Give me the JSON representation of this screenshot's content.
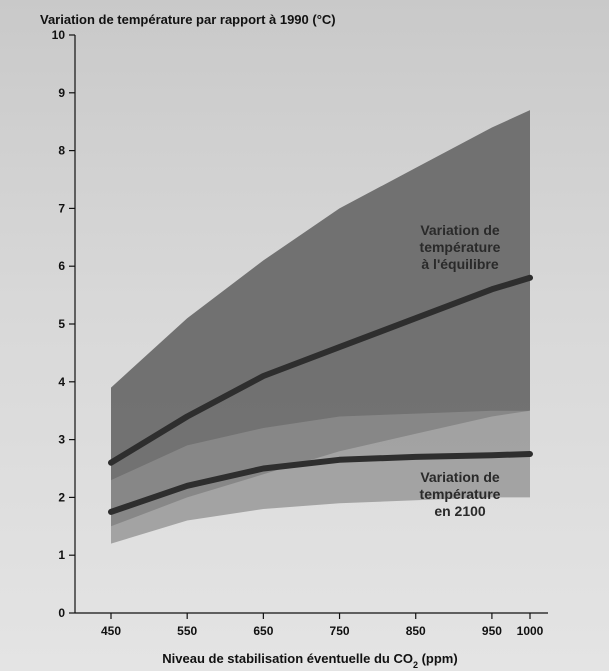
{
  "chart_data": {
    "type": "area",
    "title": "",
    "ylabel": "Variation de température par rapport à 1990 (°C)",
    "xlabel_main": "Niveau de stabilisation éventuelle du CO",
    "xlabel_sub": "2",
    "xlabel_tail": " (ppm)",
    "xlim": [
      450,
      1000
    ],
    "ylim": [
      0,
      10
    ],
    "xticks": [
      450,
      550,
      650,
      750,
      850,
      950,
      1000
    ],
    "yticks": [
      0,
      1,
      2,
      3,
      4,
      5,
      6,
      7,
      8,
      9,
      10
    ],
    "grid": false,
    "series": [
      {
        "x": [
          450,
          550,
          650,
          750,
          850,
          950,
          1000
        ],
        "lower": [
          1.5,
          2.0,
          2.4,
          2.8,
          3.1,
          3.4,
          3.5
        ],
        "upper": [
          3.9,
          5.1,
          6.1,
          7.0,
          7.7,
          8.4,
          8.7
        ],
        "values": [
          2.6,
          3.4,
          4.1,
          4.6,
          5.1,
          5.6,
          5.8
        ]
      },
      {
        "x": [
          450,
          550,
          650,
          750,
          850,
          950,
          1000
        ],
        "lower": [
          1.2,
          1.6,
          1.8,
          1.9,
          1.95,
          2.0,
          2.0
        ],
        "upper": [
          2.3,
          2.9,
          3.2,
          3.4,
          3.45,
          3.5,
          3.5
        ],
        "values": [
          1.75,
          2.2,
          2.5,
          2.65,
          2.7,
          2.73,
          2.75
        ]
      }
    ],
    "annotations": [
      {
        "lines": [
          "Variation de",
          "température",
          "à l'équilibre"
        ]
      },
      {
        "lines": [
          "Variation de",
          "température",
          "en 2100"
        ]
      }
    ],
    "colors": {
      "band_equilibrium": "#6b6b6b",
      "band_2100": "#8f8f8f",
      "line": "#2e2e2e",
      "axis": "#111111"
    }
  }
}
